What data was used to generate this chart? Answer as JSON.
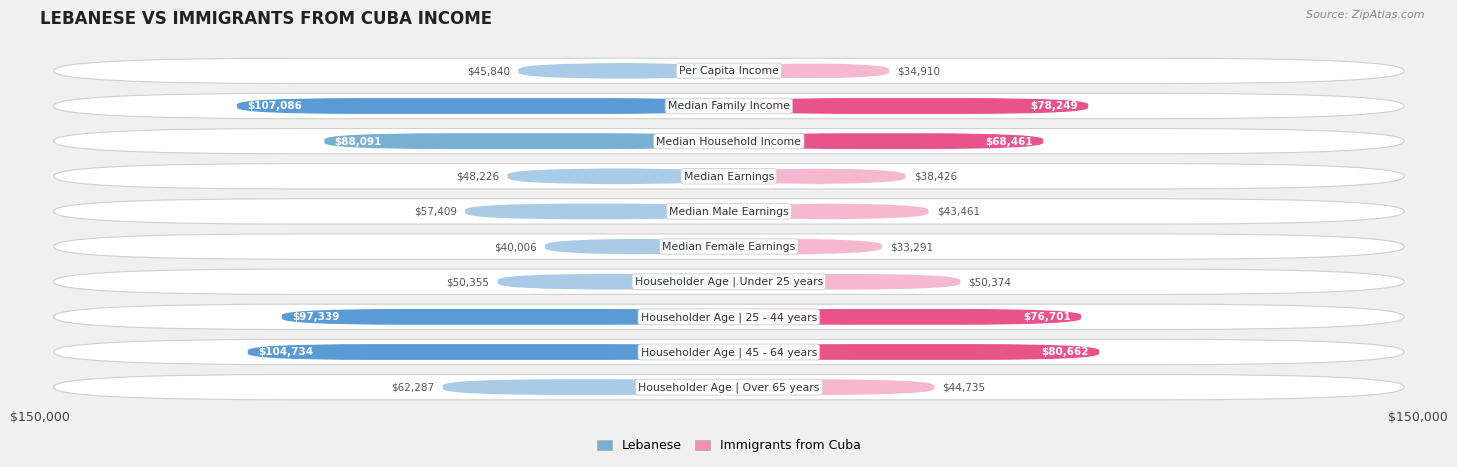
{
  "title": "LEBANESE VS IMMIGRANTS FROM CUBA INCOME",
  "source": "Source: ZipAtlas.com",
  "categories": [
    "Per Capita Income",
    "Median Family Income",
    "Median Household Income",
    "Median Earnings",
    "Median Male Earnings",
    "Median Female Earnings",
    "Householder Age | Under 25 years",
    "Householder Age | 25 - 44 years",
    "Householder Age | 45 - 64 years",
    "Householder Age | Over 65 years"
  ],
  "lebanese": [
    45840,
    107086,
    88091,
    48226,
    57409,
    40006,
    50355,
    97339,
    104734,
    62287
  ],
  "cuba": [
    34910,
    78249,
    68461,
    38426,
    43461,
    33291,
    50374,
    76701,
    80662,
    44735
  ],
  "lebanese_colors": [
    "#aacbe8",
    "#5b9bd5",
    "#7aafd4",
    "#aacbe8",
    "#aacbe8",
    "#aacbe8",
    "#aacbe8",
    "#5b9bd5",
    "#5b9bd5",
    "#aacbe8"
  ],
  "cuba_colors": [
    "#f5b8ce",
    "#e8538a",
    "#e8538a",
    "#f5b8ce",
    "#f5b8ce",
    "#f5b8ce",
    "#f5b8ce",
    "#e8538a",
    "#e8538a",
    "#f5b8ce"
  ],
  "leb_label_inside": [
    false,
    true,
    true,
    false,
    false,
    false,
    false,
    true,
    true,
    false
  ],
  "cuba_label_inside": [
    false,
    true,
    true,
    false,
    false,
    false,
    false,
    true,
    true,
    false
  ],
  "max_value": 150000,
  "bg_color": "#f0f0f0",
  "pill_color": "#ffffff",
  "pill_border": "#d0d0d0",
  "label_color": "#555555",
  "title_color": "#222222",
  "legend_labels": [
    "Lebanese",
    "Immigrants from Cuba"
  ],
  "legend_leb_color": "#7aafd4",
  "legend_cuba_color": "#f48fb1",
  "xlabel_left": "$150,000",
  "xlabel_right": "$150,000"
}
